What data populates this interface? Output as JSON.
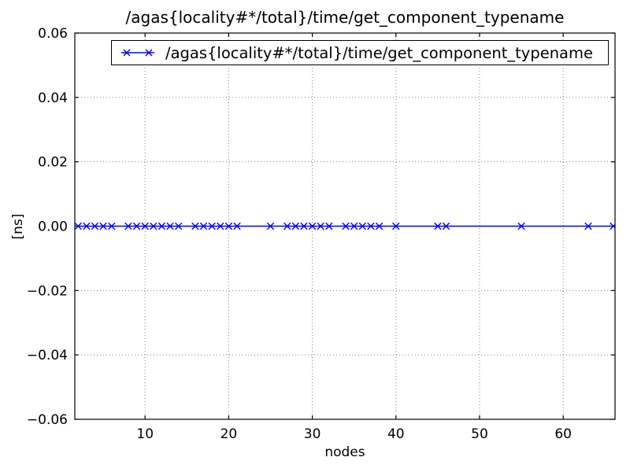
{
  "chart_data": {
    "type": "line",
    "title": "/agas{locality#*/total}/time/get_component_typename",
    "xlabel": "nodes",
    "ylabel": "[ns]",
    "xlim": [
      1.6,
      66.2
    ],
    "ylim": [
      -0.06,
      0.06
    ],
    "xticks": [
      10,
      20,
      30,
      40,
      50,
      60
    ],
    "yticks": [
      -0.06,
      -0.04,
      -0.02,
      0,
      0.02,
      0.04,
      0.06
    ],
    "grid": true,
    "grid_style": "dotted",
    "legend_position": "upper center",
    "frame_color": "#000000",
    "series": [
      {
        "name": "/agas{locality#*/total}/time/get_component_typename",
        "color": "#0000ff",
        "marker": "x",
        "x": [
          2,
          3,
          4,
          5,
          6,
          8,
          9,
          10,
          11,
          12,
          13,
          14,
          16,
          17,
          18,
          19,
          20,
          21,
          25,
          27,
          28,
          29,
          30,
          31,
          32,
          34,
          35,
          36,
          37,
          38,
          40,
          45,
          46,
          55,
          63,
          66
        ],
        "y": [
          0,
          0,
          0,
          0,
          0,
          0,
          0,
          0,
          0,
          0,
          0,
          0,
          0,
          0,
          0,
          0,
          0,
          0,
          0,
          0,
          0,
          0,
          0,
          0,
          0,
          0,
          0,
          0,
          0,
          0,
          0,
          0,
          0,
          0,
          0,
          0
        ]
      }
    ]
  }
}
